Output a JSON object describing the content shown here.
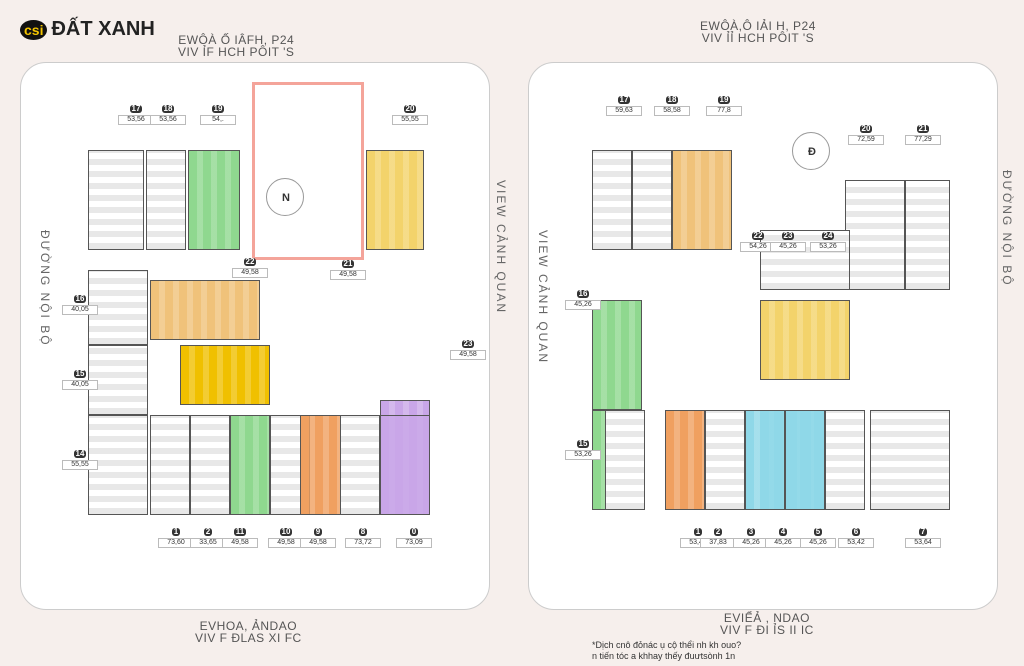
{
  "header": {
    "logo_mark": "csi",
    "logo_text": "ĐẤT XANH",
    "left_title": "EWÔÀ Ố IÂFH, P24",
    "left_subtitle": "VIV ỈF HCH PÔIT 'S",
    "right_title": "EWÔÀ,Ô IẢI H, P24",
    "right_subtitle": "VIV ỈỈ HCH PÔIT 'S"
  },
  "footer": {
    "left_title": "EVHOA, ẢNDAO",
    "left_subtitle": "VIV F ĐLAS XI FC",
    "right_title": "EVIỂẢ , NDAO",
    "right_subtitle": "VIV F ĐI ỈS II IC",
    "note_line1": "*Dịch cnô đỏnác ụ cộ thểi nh kh ouo?",
    "note_line2": "n tiến tóc a khhay thếy đuưtsònh 1n"
  },
  "compass": {
    "left": "N",
    "right": "Đ"
  },
  "side_labels": {
    "left_outer": "ĐƯỜNG NỘI BỘ",
    "left_inner": "VIEW CẢNH QUAN",
    "right_inner": "VIEW CẢNH QUAN",
    "right_outer": "ĐƯỜNG NỘI BỘ"
  },
  "left_units": [
    {
      "no": "17",
      "area": "53,56",
      "color": "#bdbdbd"
    },
    {
      "no": "18",
      "area": "53,56",
      "color": "#bdbdbd"
    },
    {
      "no": "19",
      "area": "54,.",
      "color": "#8fd88f"
    },
    {
      "no": "20",
      "area": "55,55",
      "color": "#f3d36b"
    },
    {
      "no": "16",
      "area": "40,05",
      "color": "#bdbdbd"
    },
    {
      "no": "15",
      "area": "40,05",
      "color": "#bdbdbd"
    },
    {
      "no": "14",
      "area": "55,55",
      "color": "#bdbdbd"
    },
    {
      "no": "21",
      "area": "49,58",
      "color": "#f0c27a"
    },
    {
      "no": "22",
      "area": "49,58",
      "color": "#f0c000"
    },
    {
      "no": "23",
      "area": "49,58",
      "color": "#c9a6e8"
    },
    {
      "no": "1",
      "area": "73,60",
      "color": "#bdbdbd"
    },
    {
      "no": "2",
      "area": "33,65",
      "color": "#bdbdbd"
    },
    {
      "no": "11",
      "area": "49,58",
      "color": "#8fd88f"
    },
    {
      "no": "10",
      "area": "49,58",
      "color": "#bdbdbd"
    },
    {
      "no": "9",
      "area": "49,58",
      "color": "#f0a060"
    },
    {
      "no": "8",
      "area": "73,72",
      "color": "#bdbdbd"
    },
    {
      "no": "0",
      "area": "73,09",
      "color": "#c9a6e8"
    }
  ],
  "right_units": [
    {
      "no": "17",
      "area": "59,63",
      "color": "#bdbdbd"
    },
    {
      "no": "18",
      "area": "58,58",
      "color": "#bdbdbd"
    },
    {
      "no": "19",
      "area": "77,8",
      "color": "#f0c27a"
    },
    {
      "no": "20",
      "area": "72,59",
      "color": "#bdbdbd"
    },
    {
      "no": "21",
      "area": "77,29",
      "color": "#bdbdbd"
    },
    {
      "no": "16",
      "area": "45,26",
      "color": "#8fd88f"
    },
    {
      "no": "15",
      "area": "53,26",
      "color": "#8fd88f"
    },
    {
      "no": "22",
      "area": "54,26",
      "color": "#bdbdbd"
    },
    {
      "no": "23",
      "area": "45,26",
      "color": "#f3d36b"
    },
    {
      "no": "24",
      "area": "53,26",
      "color": "#8fd8e8"
    },
    {
      "no": "1",
      "area": "53,42",
      "color": "#bdbdbd"
    },
    {
      "no": "2",
      "area": "37,83",
      "color": "#f0a060"
    },
    {
      "no": "3",
      "area": "45,26",
      "color": "#bdbdbd"
    },
    {
      "no": "4",
      "area": "45,26",
      "color": "#8fd8e8"
    },
    {
      "no": "5",
      "area": "45,26",
      "color": "#8fd8e8"
    },
    {
      "no": "6",
      "area": "53,42",
      "color": "#bdbdbd"
    },
    {
      "no": "7",
      "area": "53,64",
      "color": "#bdbdbd"
    }
  ]
}
